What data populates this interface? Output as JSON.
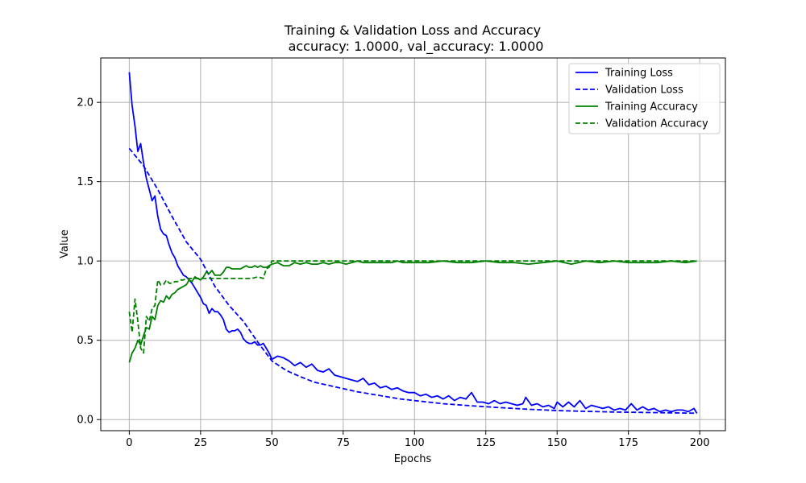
{
  "chart_data": {
    "type": "line",
    "title": "Training & Validation Loss and Accuracy",
    "subtitle": "accuracy: 1.0000, val_accuracy: 1.0000",
    "xlabel": "Epochs",
    "ylabel": "Value",
    "xlim": [
      -10,
      209
    ],
    "ylim": [
      -0.07,
      2.28
    ],
    "x_ticks": [
      0,
      25,
      50,
      75,
      100,
      125,
      150,
      175,
      200
    ],
    "y_ticks": [
      0.0,
      0.5,
      1.0,
      1.5,
      2.0
    ],
    "x_tick_labels": [
      "0",
      "25",
      "50",
      "75",
      "100",
      "125",
      "150",
      "175",
      "200"
    ],
    "y_tick_labels": [
      "0.0",
      "0.5",
      "1.0",
      "1.5",
      "2.0"
    ],
    "grid": true,
    "legend_position": "top-right",
    "series": [
      {
        "name": "Training Loss",
        "color": "#0000ff",
        "dash": "solid",
        "points": [
          [
            0,
            2.19
          ],
          [
            1,
            1.98
          ],
          [
            2,
            1.85
          ],
          [
            3,
            1.69
          ],
          [
            4,
            1.74
          ],
          [
            5,
            1.62
          ],
          [
            6,
            1.52
          ],
          [
            7,
            1.45
          ],
          [
            8,
            1.38
          ],
          [
            9,
            1.41
          ],
          [
            10,
            1.28
          ],
          [
            11,
            1.2
          ],
          [
            12,
            1.17
          ],
          [
            13,
            1.16
          ],
          [
            14,
            1.1
          ],
          [
            15,
            1.05
          ],
          [
            16,
            1.02
          ],
          [
            17,
            0.97
          ],
          [
            18,
            0.94
          ],
          [
            19,
            0.91
          ],
          [
            20,
            0.9
          ],
          [
            21,
            0.88
          ],
          [
            22,
            0.86
          ],
          [
            23,
            0.83
          ],
          [
            24,
            0.8
          ],
          [
            25,
            0.77
          ],
          [
            26,
            0.73
          ],
          [
            27,
            0.72
          ],
          [
            28,
            0.67
          ],
          [
            29,
            0.7
          ],
          [
            30,
            0.68
          ],
          [
            31,
            0.68
          ],
          [
            32,
            0.66
          ],
          [
            33,
            0.63
          ],
          [
            34,
            0.57
          ],
          [
            35,
            0.55
          ],
          [
            36,
            0.56
          ],
          [
            37,
            0.56
          ],
          [
            38,
            0.57
          ],
          [
            39,
            0.55
          ],
          [
            40,
            0.51
          ],
          [
            41,
            0.49
          ],
          [
            42,
            0.48
          ],
          [
            43,
            0.48
          ],
          [
            44,
            0.49
          ],
          [
            45,
            0.47
          ],
          [
            46,
            0.47
          ],
          [
            47,
            0.48
          ],
          [
            48,
            0.45
          ],
          [
            49,
            0.42
          ],
          [
            50,
            0.38
          ],
          [
            52,
            0.4
          ],
          [
            54,
            0.39
          ],
          [
            56,
            0.37
          ],
          [
            58,
            0.34
          ],
          [
            60,
            0.36
          ],
          [
            62,
            0.33
          ],
          [
            64,
            0.35
          ],
          [
            66,
            0.31
          ],
          [
            68,
            0.3
          ],
          [
            70,
            0.32
          ],
          [
            72,
            0.28
          ],
          [
            74,
            0.27
          ],
          [
            76,
            0.26
          ],
          [
            78,
            0.25
          ],
          [
            80,
            0.24
          ],
          [
            82,
            0.26
          ],
          [
            84,
            0.22
          ],
          [
            86,
            0.23
          ],
          [
            88,
            0.2
          ],
          [
            90,
            0.21
          ],
          [
            92,
            0.19
          ],
          [
            94,
            0.2
          ],
          [
            96,
            0.18
          ],
          [
            98,
            0.17
          ],
          [
            100,
            0.17
          ],
          [
            102,
            0.15
          ],
          [
            104,
            0.16
          ],
          [
            106,
            0.14
          ],
          [
            108,
            0.15
          ],
          [
            110,
            0.13
          ],
          [
            112,
            0.15
          ],
          [
            114,
            0.12
          ],
          [
            116,
            0.14
          ],
          [
            118,
            0.13
          ],
          [
            120,
            0.17
          ],
          [
            122,
            0.11
          ],
          [
            124,
            0.11
          ],
          [
            126,
            0.1
          ],
          [
            128,
            0.12
          ],
          [
            130,
            0.1
          ],
          [
            132,
            0.11
          ],
          [
            134,
            0.1
          ],
          [
            136,
            0.09
          ],
          [
            138,
            0.1
          ],
          [
            139,
            0.14
          ],
          [
            141,
            0.09
          ],
          [
            143,
            0.1
          ],
          [
            145,
            0.08
          ],
          [
            147,
            0.09
          ],
          [
            149,
            0.07
          ],
          [
            150,
            0.11
          ],
          [
            152,
            0.08
          ],
          [
            154,
            0.11
          ],
          [
            156,
            0.08
          ],
          [
            158,
            0.12
          ],
          [
            160,
            0.07
          ],
          [
            162,
            0.09
          ],
          [
            164,
            0.08
          ],
          [
            166,
            0.07
          ],
          [
            168,
            0.08
          ],
          [
            170,
            0.06
          ],
          [
            172,
            0.07
          ],
          [
            174,
            0.06
          ],
          [
            176,
            0.1
          ],
          [
            178,
            0.06
          ],
          [
            180,
            0.08
          ],
          [
            182,
            0.06
          ],
          [
            184,
            0.07
          ],
          [
            186,
            0.05
          ],
          [
            188,
            0.06
          ],
          [
            190,
            0.05
          ],
          [
            192,
            0.06
          ],
          [
            194,
            0.06
          ],
          [
            196,
            0.05
          ],
          [
            198,
            0.07
          ],
          [
            199,
            0.04
          ]
        ]
      },
      {
        "name": "Validation Loss",
        "color": "#0000ff",
        "dash": "dashed",
        "points": [
          [
            0,
            1.71
          ],
          [
            5,
            1.6
          ],
          [
            10,
            1.45
          ],
          [
            15,
            1.28
          ],
          [
            20,
            1.12
          ],
          [
            25,
            1.01
          ],
          [
            30,
            0.84
          ],
          [
            35,
            0.72
          ],
          [
            40,
            0.62
          ],
          [
            45,
            0.49
          ],
          [
            50,
            0.37
          ],
          [
            55,
            0.31
          ],
          [
            60,
            0.27
          ],
          [
            65,
            0.235
          ],
          [
            70,
            0.215
          ],
          [
            75,
            0.195
          ],
          [
            80,
            0.175
          ],
          [
            85,
            0.16
          ],
          [
            90,
            0.145
          ],
          [
            95,
            0.13
          ],
          [
            100,
            0.12
          ],
          [
            110,
            0.1
          ],
          [
            120,
            0.087
          ],
          [
            130,
            0.075
          ],
          [
            140,
            0.065
          ],
          [
            150,
            0.057
          ],
          [
            160,
            0.052
          ],
          [
            170,
            0.048
          ],
          [
            180,
            0.045
          ],
          [
            190,
            0.042
          ],
          [
            199,
            0.04
          ]
        ]
      },
      {
        "name": "Training Accuracy",
        "color": "#008000",
        "dash": "solid",
        "points": [
          [
            0,
            0.36
          ],
          [
            1,
            0.42
          ],
          [
            2,
            0.45
          ],
          [
            3,
            0.5
          ],
          [
            4,
            0.47
          ],
          [
            5,
            0.53
          ],
          [
            6,
            0.58
          ],
          [
            7,
            0.57
          ],
          [
            8,
            0.65
          ],
          [
            9,
            0.63
          ],
          [
            10,
            0.72
          ],
          [
            11,
            0.75
          ],
          [
            12,
            0.74
          ],
          [
            13,
            0.78
          ],
          [
            14,
            0.76
          ],
          [
            15,
            0.79
          ],
          [
            16,
            0.8
          ],
          [
            17,
            0.82
          ],
          [
            18,
            0.83
          ],
          [
            19,
            0.84
          ],
          [
            20,
            0.85
          ],
          [
            21,
            0.88
          ],
          [
            22,
            0.87
          ],
          [
            23,
            0.9
          ],
          [
            24,
            0.89
          ],
          [
            25,
            0.88
          ],
          [
            26,
            0.9
          ],
          [
            27,
            0.93
          ],
          [
            28,
            0.92
          ],
          [
            29,
            0.94
          ],
          [
            30,
            0.91
          ],
          [
            31,
            0.91
          ],
          [
            32,
            0.91
          ],
          [
            33,
            0.93
          ],
          [
            34,
            0.96
          ],
          [
            35,
            0.96
          ],
          [
            36,
            0.95
          ],
          [
            37,
            0.95
          ],
          [
            38,
            0.95
          ],
          [
            39,
            0.95
          ],
          [
            40,
            0.96
          ],
          [
            41,
            0.97
          ],
          [
            42,
            0.96
          ],
          [
            43,
            0.96
          ],
          [
            44,
            0.97
          ],
          [
            45,
            0.96
          ],
          [
            46,
            0.97
          ],
          [
            47,
            0.96
          ],
          [
            48,
            0.96
          ],
          [
            49,
            0.97
          ],
          [
            50,
            0.98
          ],
          [
            52,
            0.99
          ],
          [
            54,
            0.97
          ],
          [
            56,
            0.97
          ],
          [
            58,
            0.99
          ],
          [
            60,
            0.98
          ],
          [
            62,
            0.99
          ],
          [
            64,
            0.98
          ],
          [
            66,
            0.98
          ],
          [
            68,
            0.99
          ],
          [
            70,
            0.98
          ],
          [
            72,
            0.99
          ],
          [
            74,
            0.99
          ],
          [
            76,
            0.98
          ],
          [
            78,
            0.99
          ],
          [
            80,
            1.0
          ],
          [
            82,
            0.99
          ],
          [
            84,
            0.99
          ],
          [
            86,
            0.99
          ],
          [
            88,
            0.99
          ],
          [
            90,
            0.99
          ],
          [
            92,
            0.99
          ],
          [
            94,
            1.0
          ],
          [
            96,
            0.99
          ],
          [
            98,
            0.99
          ],
          [
            100,
            0.99
          ],
          [
            105,
            0.99
          ],
          [
            110,
            1.0
          ],
          [
            115,
            0.99
          ],
          [
            120,
            0.99
          ],
          [
            125,
            1.0
          ],
          [
            130,
            0.99
          ],
          [
            135,
            0.99
          ],
          [
            140,
            0.98
          ],
          [
            145,
            0.99
          ],
          [
            150,
            1.0
          ],
          [
            155,
            0.98
          ],
          [
            160,
            1.0
          ],
          [
            165,
            0.99
          ],
          [
            170,
            1.0
          ],
          [
            175,
            0.99
          ],
          [
            180,
            0.99
          ],
          [
            185,
            0.99
          ],
          [
            190,
            1.0
          ],
          [
            195,
            0.99
          ],
          [
            199,
            1.0
          ]
        ]
      },
      {
        "name": "Validation Accuracy",
        "color": "#008000",
        "dash": "dashed",
        "points": [
          [
            0,
            0.68
          ],
          [
            1,
            0.55
          ],
          [
            2,
            0.76
          ],
          [
            3,
            0.62
          ],
          [
            4,
            0.45
          ],
          [
            5,
            0.42
          ],
          [
            6,
            0.65
          ],
          [
            7,
            0.62
          ],
          [
            8,
            0.7
          ],
          [
            9,
            0.72
          ],
          [
            10,
            0.88
          ],
          [
            11,
            0.85
          ],
          [
            12,
            0.85
          ],
          [
            13,
            0.88
          ],
          [
            14,
            0.86
          ],
          [
            15,
            0.86
          ],
          [
            16,
            0.87
          ],
          [
            17,
            0.87
          ],
          [
            18,
            0.88
          ],
          [
            19,
            0.88
          ],
          [
            20,
            0.89
          ],
          [
            21,
            0.89
          ],
          [
            22,
            0.89
          ],
          [
            23,
            0.89
          ],
          [
            24,
            0.89
          ],
          [
            25,
            0.89
          ],
          [
            30,
            0.89
          ],
          [
            35,
            0.89
          ],
          [
            40,
            0.89
          ],
          [
            43,
            0.89
          ],
          [
            45,
            0.9
          ],
          [
            47,
            0.89
          ],
          [
            48,
            0.95
          ],
          [
            49,
            0.96
          ],
          [
            50,
            1.0
          ],
          [
            60,
            1.0
          ],
          [
            80,
            1.0
          ],
          [
            100,
            1.0
          ],
          [
            120,
            1.0
          ],
          [
            140,
            1.0
          ],
          [
            160,
            1.0
          ],
          [
            180,
            1.0
          ],
          [
            199,
            1.0
          ]
        ]
      }
    ]
  }
}
